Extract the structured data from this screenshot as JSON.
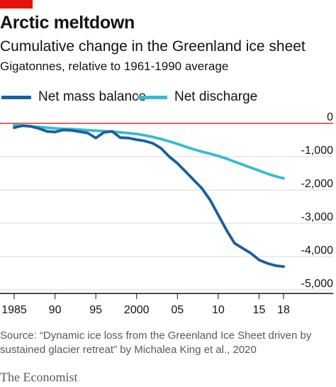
{
  "header": {
    "title": "Arctic meltdown",
    "subtitle": "Cumulative change in the Greenland ice sheet",
    "unit": "Gigatonnes, relative to 1961-1990 average"
  },
  "colors": {
    "brand_red": "#e3120b",
    "net_mass_balance": "#17609e",
    "net_discharge": "#36bcd1",
    "zero_line": "#d9342b",
    "grid": "#d6d9db",
    "axis": "#121212"
  },
  "chart_data": {
    "type": "line",
    "xlabel": "",
    "ylabel": "",
    "xlim": [
      1985,
      2018
    ],
    "ylim": [
      -5000,
      0
    ],
    "x_ticks": [
      1985,
      1990,
      1995,
      2000,
      2005,
      2010,
      2015,
      2018
    ],
    "x_tick_labels": [
      "1985",
      "90",
      "95",
      "2000",
      "05",
      "10",
      "15",
      "18"
    ],
    "y_ticks": [
      0,
      -1000,
      -2000,
      -3000,
      -4000,
      -5000
    ],
    "y_tick_labels": [
      "0",
      "-1,000",
      "-2,000",
      "-3,000",
      "-4,000",
      "-5,000"
    ],
    "grid": "horizontal",
    "legend_position": "top",
    "series": [
      {
        "name": "Net mass balance",
        "color": "#17609e",
        "x": [
          1985,
          1986,
          1987,
          1988,
          1989,
          1990,
          1991,
          1992,
          1993,
          1994,
          1995,
          1996,
          1997,
          1998,
          1999,
          2000,
          2001,
          2002,
          2003,
          2004,
          2005,
          2006,
          2007,
          2008,
          2009,
          2010,
          2011,
          2012,
          2013,
          2014,
          2015,
          2016,
          2017,
          2018
        ],
        "values": [
          -130,
          -70,
          -90,
          -150,
          -240,
          -260,
          -200,
          -210,
          -250,
          -290,
          -440,
          -270,
          -240,
          -430,
          -440,
          -490,
          -530,
          -600,
          -750,
          -1000,
          -1200,
          -1450,
          -1700,
          -1950,
          -2300,
          -2750,
          -3200,
          -3600,
          -3750,
          -3900,
          -4100,
          -4200,
          -4270,
          -4300
        ]
      },
      {
        "name": "Net discharge",
        "color": "#36bcd1",
        "x": [
          1985,
          1986,
          1987,
          1988,
          1989,
          1990,
          1991,
          1992,
          1993,
          1994,
          1995,
          1996,
          1997,
          1998,
          1999,
          2000,
          2001,
          2002,
          2003,
          2004,
          2005,
          2006,
          2007,
          2008,
          2009,
          2010,
          2011,
          2012,
          2013,
          2014,
          2015,
          2016,
          2017,
          2018
        ],
        "values": [
          -60,
          -70,
          -90,
          -110,
          -130,
          -150,
          -165,
          -175,
          -190,
          -205,
          -220,
          -235,
          -250,
          -270,
          -295,
          -320,
          -360,
          -410,
          -470,
          -540,
          -620,
          -700,
          -780,
          -850,
          -910,
          -980,
          -1060,
          -1150,
          -1240,
          -1330,
          -1420,
          -1510,
          -1590,
          -1650
        ]
      }
    ]
  },
  "footer": {
    "source": "Source: “Dynamic ice loss from the Greenland Ice Sheet driven by sustained glacier retreat” by Michalea King et al., 2020",
    "brand": "The Economist"
  }
}
